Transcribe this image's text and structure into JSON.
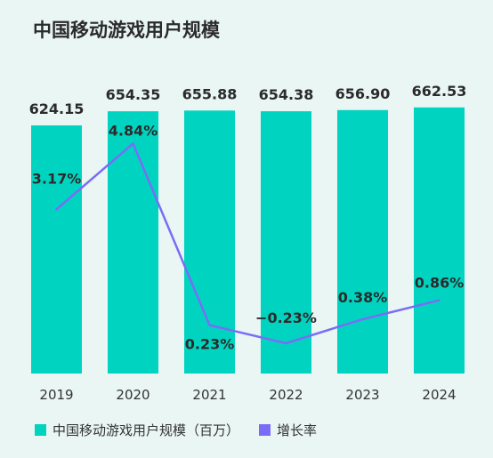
{
  "title": "中国移动游戏用户规模",
  "colors": {
    "background": "#e9f6f4",
    "bar": "#00d4c0",
    "line": "#7a6cf6"
  },
  "legend": {
    "bars_label": "中国移动游戏用户规模（百万）",
    "line_label": "增长率"
  },
  "chart_data": {
    "type": "bar",
    "categories": [
      "2019",
      "2020",
      "2021",
      "2022",
      "2023",
      "2024"
    ],
    "series": [
      {
        "name": "中国移动游戏用户规模（百万）",
        "type": "bar",
        "values": [
          624.15,
          654.35,
          655.88,
          654.38,
          656.9,
          662.53
        ],
        "labels": [
          "624.15",
          "654.35",
          "655.88",
          "654.38",
          "656.90",
          "662.53"
        ]
      },
      {
        "name": "增长率",
        "type": "line",
        "values": [
          3.17,
          4.84,
          0.23,
          -0.23,
          0.38,
          0.86
        ],
        "labels": [
          "3.17%",
          "4.84%",
          "0.23%",
          "−0.23%",
          "0.38%",
          "0.86%"
        ]
      }
    ],
    "legend_position": "bottom-left",
    "grid": false
  }
}
